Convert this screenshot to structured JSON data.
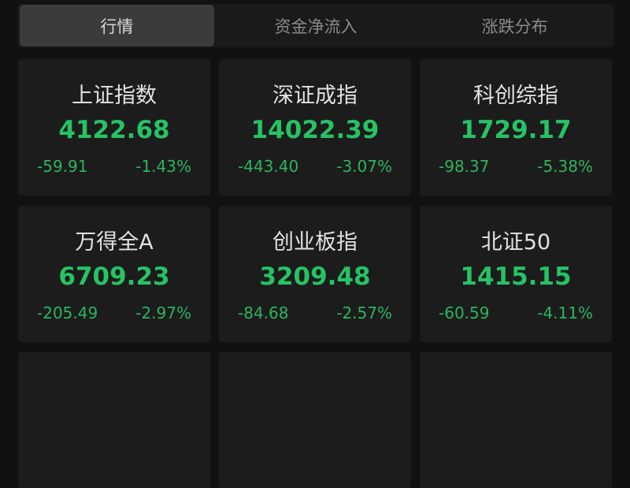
{
  "tabs": [
    {
      "label": "行情",
      "active": true
    },
    {
      "label": "资金净流入",
      "active": false
    },
    {
      "label": "涨跌分布",
      "active": false
    }
  ],
  "colors": {
    "down": "#27c264"
  },
  "indices": [
    {
      "name": "上证指数",
      "value": "4122.68",
      "change": "-59.91",
      "pct": "-1.43%"
    },
    {
      "name": "深证成指",
      "value": "14022.39",
      "change": "-443.40",
      "pct": "-3.07%"
    },
    {
      "name": "科创综指",
      "value": "1729.17",
      "change": "-98.37",
      "pct": "-5.38%"
    },
    {
      "name": "万得全A",
      "value": "6709.23",
      "change": "-205.49",
      "pct": "-2.97%"
    },
    {
      "name": "创业板指",
      "value": "3209.48",
      "change": "-84.68",
      "pct": "-2.57%"
    },
    {
      "name": "北证50",
      "value": "1415.15",
      "change": "-60.59",
      "pct": "-4.11%"
    }
  ]
}
